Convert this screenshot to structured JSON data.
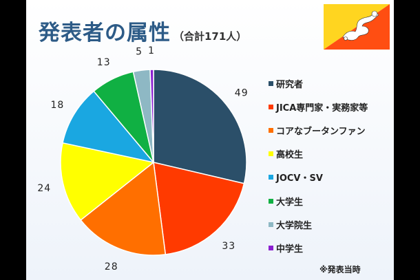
{
  "slide": {
    "title": "発表者の属性",
    "subtitle": "（合計171人）",
    "note": "※発表当時"
  },
  "flag": {
    "name": "bhutan-flag",
    "colors": [
      "#ffd520",
      "#ff4e12",
      "#ffffff"
    ]
  },
  "chart_data": {
    "type": "pie",
    "title": "",
    "total": 171,
    "start_angle_deg": 0,
    "direction": "clockwise",
    "legend_position": "right",
    "slices": [
      {
        "name": "研究者",
        "value": 49,
        "label": "49",
        "color": "#2b4f69"
      },
      {
        "name": "JICA専門家・実務家等",
        "value": 33,
        "label": "33",
        "color": "#ff3a00"
      },
      {
        "name": "コアなブータンファン",
        "value": 28,
        "label": "28",
        "color": "#ff6f00"
      },
      {
        "name": "高校生",
        "value": 24,
        "label": "24",
        "color": "#ffff00"
      },
      {
        "name": "JOCV・SV",
        "value": 18,
        "label": "18",
        "color": "#1aa7e1"
      },
      {
        "name": "大学生",
        "value": 13,
        "label": "13",
        "color": "#10b043"
      },
      {
        "name": "大学院生",
        "value": 5,
        "label": "5",
        "color": "#8eb8c4"
      },
      {
        "name": "中学生",
        "value": 1,
        "label": "1",
        "color": "#8b1fd0"
      }
    ]
  }
}
